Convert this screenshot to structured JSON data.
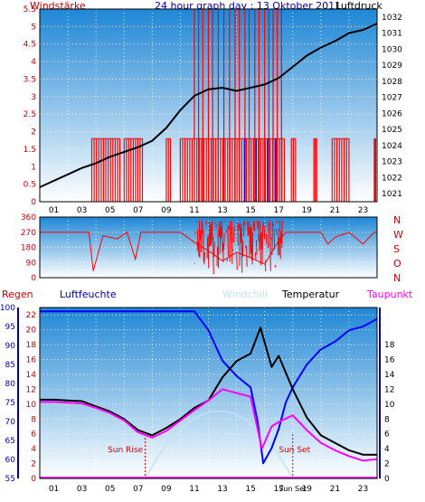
{
  "header": {
    "windstaerke": "Windstärke",
    "title": "24 hour graph day : 13 Oktober 2011",
    "luftdruck": "Luftdruck"
  },
  "labels": {
    "regen": "Regen",
    "luftfeuchte": "Luftfeuchte",
    "windchill": "Windchill",
    "temperatur": "Temperatur",
    "taupunkt": "Taupunkt",
    "sun_rise": "Sun Rise",
    "sun_set": "Sun Set",
    "sun_set_axis": "Sun Set"
  },
  "colors": {
    "bg_top": "#1f87d6",
    "bg_bottom": "#ffffff",
    "wind": "#ff0000",
    "gust": "#0000ff",
    "pressure": "#000000",
    "humidity": "#0000ff",
    "temperature": "#000000",
    "dewpoint": "#ff00ff",
    "sun": "#cc0000"
  },
  "chart_data": [
    {
      "type": "line",
      "xlabel": "",
      "x_ticks": [
        "01",
        "03",
        "05",
        "07",
        "09",
        "11",
        "13",
        "15",
        "17",
        "19",
        "21",
        "23"
      ],
      "y_left_ticks": [
        "0",
        "0.5",
        "1",
        "1.5",
        "2",
        "2.5",
        "3",
        "3.5",
        "4",
        "4.5",
        "5",
        "5.5"
      ],
      "y_left_lim": [
        0,
        5.5
      ],
      "y_right_ticks": [
        "1021",
        "1022",
        "1023",
        "1024",
        "1025",
        "1026",
        "1027",
        "1028",
        "1029",
        "1030",
        "1031",
        "1032"
      ],
      "y_right_lim": [
        1020.5,
        1032.5
      ],
      "grid": true,
      "pressure": {
        "x": [
          0,
          1,
          2,
          3,
          4,
          5,
          6,
          7,
          8,
          9,
          10,
          11,
          12,
          13,
          14,
          15,
          16,
          17,
          18,
          19,
          20,
          21,
          22,
          23,
          24
        ],
        "values": [
          1021.4,
          1021.8,
          1022.2,
          1022.6,
          1022.9,
          1023.3,
          1023.6,
          1023.9,
          1024.3,
          1025.1,
          1026.2,
          1027.1,
          1027.5,
          1027.6,
          1027.4,
          1027.6,
          1027.8,
          1028.2,
          1028.9,
          1029.6,
          1030.1,
          1030.5,
          1031.0,
          1031.2,
          1031.6
        ]
      },
      "wind": {
        "description": "Windstärke bars",
        "bursts": [
          {
            "from": 3.7,
            "to": 5.7,
            "level": 1.8
          },
          {
            "from": 6.0,
            "to": 7.3,
            "level": 1.8
          },
          {
            "from": 9.0,
            "to": 9.3,
            "level": 1.8
          },
          {
            "from": 10.0,
            "to": 17.4,
            "level": 1.8
          },
          {
            "from": 17.9,
            "to": 18.2,
            "level": 1.8
          },
          {
            "from": 19.5,
            "to": 19.7,
            "level": 1.8
          },
          {
            "from": 20.8,
            "to": 22.0,
            "level": 1.8
          },
          {
            "from": 23.8,
            "to": 23.9,
            "level": 1.8
          }
        ],
        "spikes_x": [
          11.0,
          11.3,
          11.6,
          12.0,
          12.3,
          12.7,
          13.1,
          13.5,
          13.9,
          14.2,
          14.6,
          14.9,
          15.3,
          15.6,
          16.0,
          16.3,
          16.6,
          16.9,
          17.2
        ],
        "spike_level": 5.5
      },
      "gusts_x": [
        14.6,
        15.4,
        16.2,
        16.8
      ]
    },
    {
      "type": "line",
      "y_left_ticks": [
        "0",
        "90",
        "180",
        "270",
        "360"
      ],
      "y_right_ticks": [
        "N",
        "W",
        "S",
        "O",
        "N"
      ],
      "y_lim": [
        0,
        360
      ],
      "direction": {
        "x": [
          0,
          3.5,
          3.8,
          4.5,
          5.5,
          6.2,
          6.8,
          7.2,
          8.0,
          9.0,
          10.0,
          11.0,
          12.0,
          13.0,
          14.0,
          15.0,
          16.0,
          17.0,
          17.5,
          18.0,
          19.0,
          20.0,
          20.5,
          21.0,
          22.0,
          23.0,
          23.8,
          24.0
        ],
        "values": [
          270,
          270,
          40,
          250,
          230,
          270,
          110,
          270,
          270,
          270,
          270,
          210,
          160,
          100,
          150,
          120,
          80,
          220,
          270,
          270,
          270,
          270,
          200,
          240,
          270,
          200,
          270,
          270
        ]
      }
    },
    {
      "type": "line",
      "y_humidity_ticks": [
        "55",
        "60",
        "65",
        "70",
        "75",
        "80",
        "85",
        "90",
        "95",
        "100"
      ],
      "y_humidity_lim": [
        55,
        100
      ],
      "y_temp_ticks": [
        "0",
        "2",
        "4",
        "6",
        "8",
        "10",
        "12",
        "14",
        "16",
        "18",
        "20",
        "22"
      ],
      "y_temp_lim": [
        0,
        23
      ],
      "y_right_ticks": [
        "0",
        "2",
        "4",
        "6",
        "8",
        "10",
        "12",
        "14",
        "16",
        "18"
      ],
      "x_ticks": [
        "01",
        "03",
        "05",
        "07",
        "09",
        "11",
        "13",
        "15",
        "17",
        "19",
        "21",
        "23"
      ],
      "temperature": {
        "x": [
          0,
          1,
          2,
          3,
          4,
          5,
          6,
          7,
          8,
          9,
          10,
          11,
          12,
          13,
          14,
          15,
          15.7,
          16.5,
          17,
          18,
          19,
          20,
          21,
          22,
          23,
          24
        ],
        "values": [
          10.6,
          10.6,
          10.5,
          10.4,
          9.7,
          9.0,
          8.0,
          6.5,
          5.8,
          6.8,
          8.0,
          9.5,
          10.5,
          13.6,
          15.8,
          16.8,
          20.3,
          15.0,
          16.5,
          12.0,
          8.2,
          5.8,
          4.8,
          3.8,
          3.2,
          3.2
        ]
      },
      "dewpoint": {
        "x": [
          0,
          1,
          2,
          3,
          4,
          5,
          6,
          7,
          8,
          9,
          10,
          11,
          12,
          13,
          14,
          15,
          15.8,
          16.5,
          17,
          18,
          19,
          20,
          21,
          22,
          23,
          24
        ],
        "values": [
          10.3,
          10.3,
          10.2,
          10.1,
          9.5,
          8.8,
          7.8,
          6.2,
          5.5,
          6.4,
          7.8,
          9.2,
          10.5,
          12.0,
          11.5,
          11.0,
          4.0,
          7.0,
          7.6,
          8.5,
          6.5,
          4.8,
          3.8,
          3.0,
          2.4,
          2.6
        ]
      },
      "humidity": {
        "x": [
          0,
          1,
          2,
          3,
          4,
          5,
          6,
          7,
          8,
          9,
          10,
          11,
          12,
          13,
          14,
          15,
          15.5,
          15.9,
          16.5,
          17,
          17.5,
          18,
          19,
          20,
          21,
          22,
          23,
          24
        ],
        "values": [
          99,
          99,
          99,
          99,
          99,
          99,
          99,
          99,
          99,
          99,
          99,
          99,
          94,
          86,
          82,
          79,
          70,
          59,
          63,
          68,
          75,
          79,
          85,
          89,
          91,
          94,
          95,
          97
        ]
      },
      "sun": {
        "rise": 7.5,
        "set": 18.0
      }
    }
  ]
}
